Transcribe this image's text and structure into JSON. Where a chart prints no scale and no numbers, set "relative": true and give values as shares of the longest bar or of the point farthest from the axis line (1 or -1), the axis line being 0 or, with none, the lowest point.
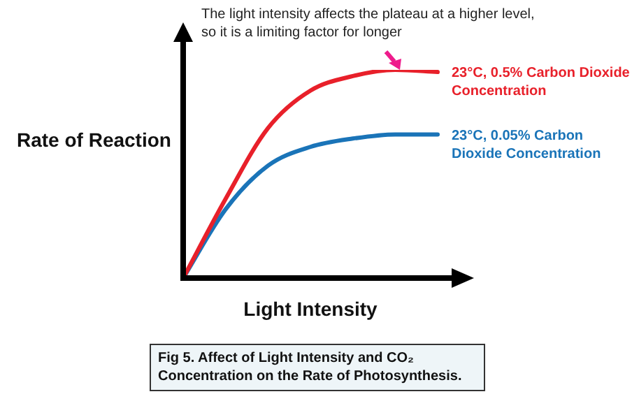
{
  "chart_data": {
    "type": "line",
    "title": "Fig 5. Affect of Light Intensity and CO₂ Concentration on the Rate of Photosynthesis.",
    "xlabel": "Light Intensity",
    "ylabel": "Rate of Reaction",
    "annotations": [
      "The light intensity affects the plateau at a higher level, so it is a limiting factor for longer"
    ],
    "relative": true,
    "categories": [
      null,
      null,
      null,
      null,
      null,
      null,
      null
    ],
    "series": [
      {
        "name": "23°C, 0.5% Carbon Dioxide Concentration",
        "color": "#e8202a",
        "values": [
          0,
          0.38,
          0.72,
          0.9,
          0.97,
          1,
          0.99
        ]
      },
      {
        "name": "23°C, 0.05% Carbon Dioxide Concentration",
        "color": "#1a74b8",
        "values": [
          0,
          0.33,
          0.54,
          0.63,
          0.67,
          0.69,
          0.69
        ]
      }
    ],
    "legend": false,
    "marker": "none",
    "line_style": "solid"
  }
}
